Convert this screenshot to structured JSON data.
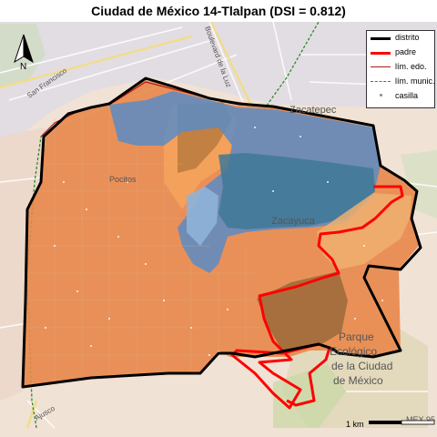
{
  "title": "Ciudad de México 14-Tlalpan (DSI = 0.812)",
  "legend": {
    "items": [
      {
        "label": "distrito",
        "color": "#000000"
      },
      {
        "label": "padre",
        "color": "#ff0000"
      },
      {
        "label": "lím. edo.",
        "color": "#b01818"
      },
      {
        "label": "lím. munic.",
        "color": "#2a8a2a"
      },
      {
        "label": "casilla",
        "color": "#888888"
      }
    ]
  },
  "north_arrow": {
    "label": "N"
  },
  "scale_bar": {
    "label": "1 km"
  },
  "basemap_labels": {
    "pocitos": "Pocitos",
    "zacatepec": "Zacatepec",
    "zacayuca": "Zacayuca",
    "parque_1": "Parque",
    "parque_2": "Ecológico",
    "parque_3": "de la Ciudad",
    "parque_4": "de México",
    "san_francisco": "San Francisco",
    "ajusco": "Ajusco",
    "boulevard": "Boulevard de la Luz",
    "mex": "MEX 95"
  },
  "colors": {
    "orange": "#e8874a",
    "orange_light": "#f5a35c",
    "brown": "#b87a3e",
    "blue": "#5a8cc4",
    "blue_dark": "#3f7896",
    "blue_light": "#8fb4d8",
    "basemap": "#f2e6d9"
  }
}
